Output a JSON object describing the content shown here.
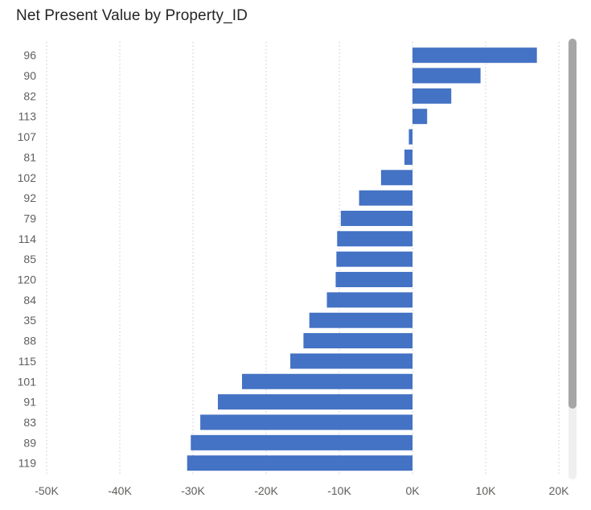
{
  "chart_data": {
    "type": "bar",
    "orientation": "horizontal",
    "title": "Net Present Value by Property_ID",
    "xlabel": "",
    "ylabel": "",
    "categories": [
      "96",
      "90",
      "82",
      "113",
      "107",
      "81",
      "102",
      "92",
      "79",
      "114",
      "85",
      "120",
      "84",
      "35",
      "88",
      "115",
      "101",
      "91",
      "83",
      "89",
      "119"
    ],
    "values": [
      17000,
      9300,
      5300,
      2000,
      -500,
      -1100,
      -4300,
      -7300,
      -9800,
      -10300,
      -10400,
      -10500,
      -11700,
      -14100,
      -14900,
      -16700,
      -23300,
      -26600,
      -29000,
      -30300,
      -30800
    ],
    "xlim": [
      -50000,
      20000
    ],
    "xticks": [
      -50000,
      -40000,
      -30000,
      -20000,
      -10000,
      0,
      10000,
      20000
    ],
    "xtick_labels": [
      "-50K",
      "-40K",
      "-30K",
      "-20K",
      "-10K",
      "0K",
      "10K",
      "20K"
    ],
    "grid": true,
    "bar_color": "#4472C4",
    "legend": "none"
  },
  "scrollbar": {
    "thumb_color": "#a6a6a6",
    "track_color": "#efefef"
  }
}
